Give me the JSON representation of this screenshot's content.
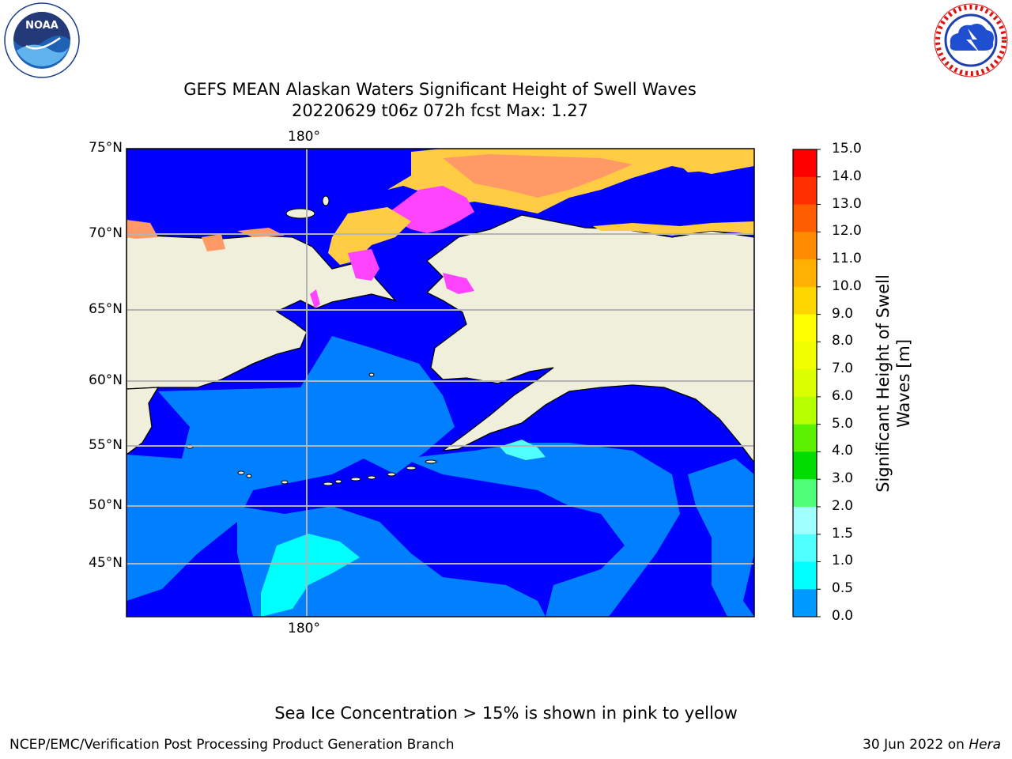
{
  "title": {
    "line1": "GEFS MEAN Alaskan Waters Significant Height of Swell Waves",
    "line2": "20220629 t06z 072h fcst   Max: 1.27"
  },
  "map": {
    "lon_label_top": "180°",
    "lon_label_bottom": "180°",
    "lat_labels": [
      "75°N",
      "70°N",
      "65°N",
      "60°N",
      "55°N",
      "50°N",
      "45°N"
    ]
  },
  "colorbar": {
    "title": "Significant Height of Swell\nWaves [m]",
    "ticks": [
      "15.0",
      "14.0",
      "13.0",
      "12.0",
      "11.0",
      "10.0",
      "9.0",
      "8.0",
      "7.0",
      "6.0",
      "5.0",
      "4.0",
      "3.0",
      "2.0",
      "1.5",
      "1.0",
      "0.5",
      "0.0"
    ],
    "colors": [
      "#ff0000",
      "#ff2f00",
      "#ff5e00",
      "#ff8c00",
      "#ffb000",
      "#ffd500",
      "#ffff00",
      "#f0ff00",
      "#dcff00",
      "#b4ff00",
      "#5af000",
      "#00dc00",
      "#50ff78",
      "#a0ffff",
      "#50ffff",
      "#00ffff",
      "#0099ff",
      "#0000ff"
    ]
  },
  "colors": {
    "land": "#efefdc",
    "swell_0": "#0000ff",
    "swell_05": "#0080ff",
    "swell_1": "#00ffff",
    "swell_15": "#50ffff",
    "ice_pink": "#ff44ff",
    "ice_orange": "#ff9966",
    "ice_yellow": "#ffcc44"
  },
  "logos": {
    "left": "NOAA",
    "right": "NATIONAL WEATHER SERVICE"
  },
  "note": "Sea Ice Concentration > 15% is shown in pink to yellow",
  "footer": {
    "left": "NCEP/EMC/Verification Post Processing Product Generation Branch",
    "right_prefix": "30 Jun 2022 on ",
    "right_machine": "Hera"
  }
}
